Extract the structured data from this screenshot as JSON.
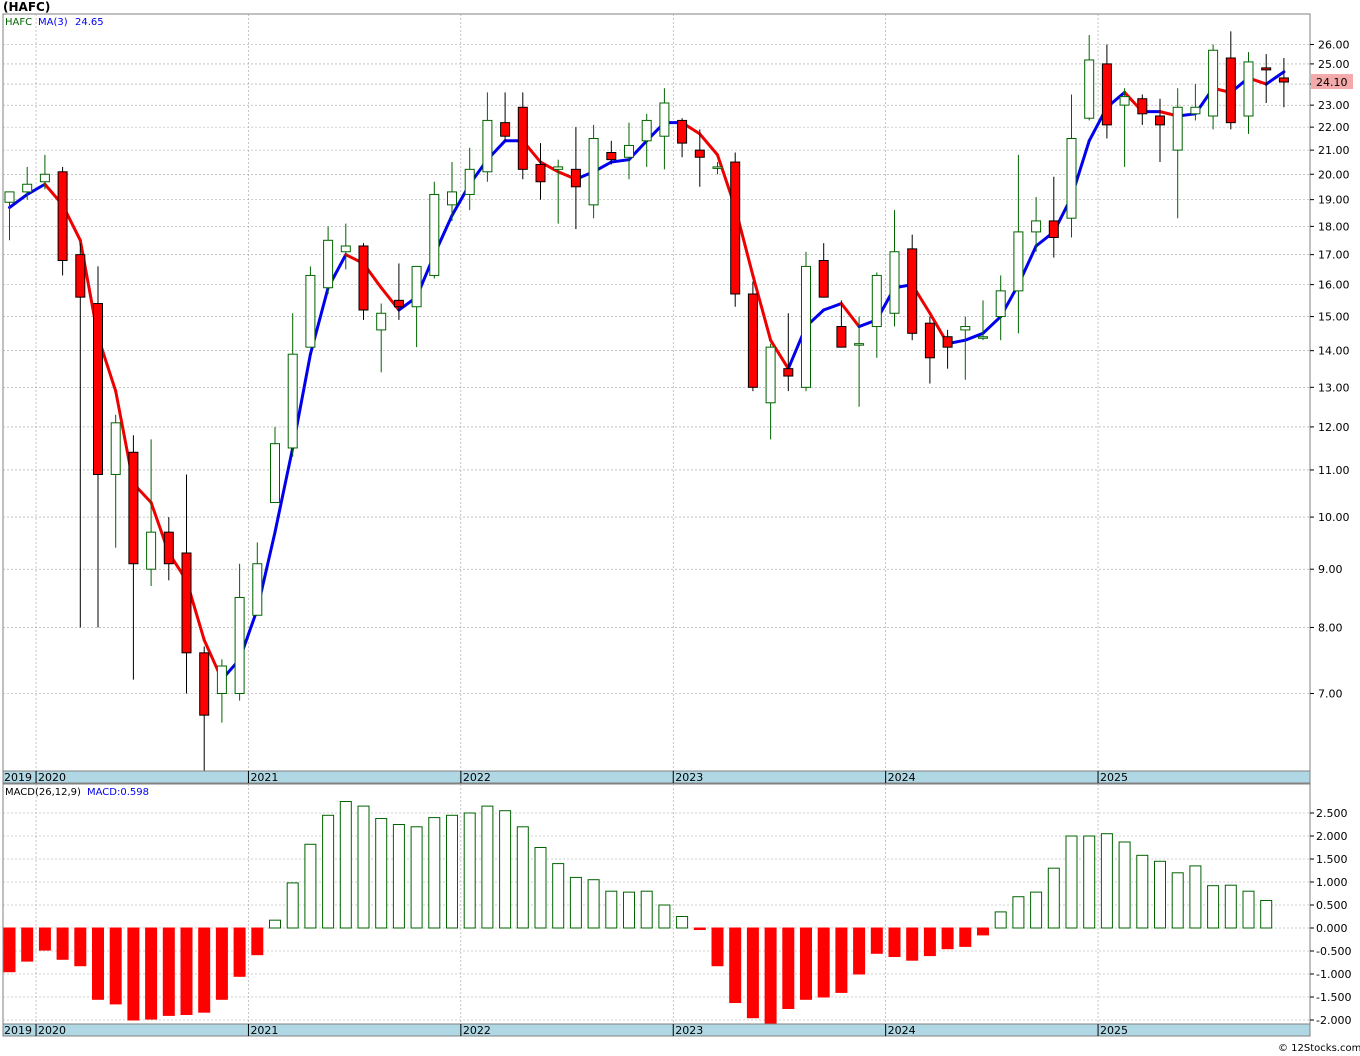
{
  "title": "(HAFC)",
  "copyright": "© 12Stocks.com",
  "last_price_label": "24.10",
  "colors": {
    "up": "#006400",
    "down": "#ff0000",
    "ma_up": "#0000ee",
    "ma_down": "#ee0000",
    "grid": "#a0a0a0",
    "axis_bar": "#b0d8e4"
  },
  "price_legend": {
    "symbol": "HAFC",
    "ma_label": "MA(3)",
    "ma_value": "24.65"
  },
  "macd_legend": {
    "label": "MACD(26,12,9)",
    "value_label": "MACD:0.598"
  },
  "year_labels": [
    "2019",
    "2020",
    "2021",
    "2022",
    "2023",
    "2024",
    "2025"
  ],
  "chart_data": [
    {
      "type": "candlestick",
      "title": "(HAFC)",
      "interval": "monthly",
      "scale": "log",
      "ylim": [
        6.0,
        27.5
      ],
      "yticks": [
        "26.00",
        "25.00",
        "24.00",
        "23.00",
        "22.00",
        "21.00",
        "20.00",
        "19.00",
        "18.00",
        "17.00",
        "16.00",
        "15.00",
        "14.00",
        "13.00",
        "12.00",
        "11.00",
        "10.00",
        "9.00",
        "8.00",
        "7.00"
      ],
      "grid": true,
      "candles": [
        {
          "d": "2019-11",
          "o": 18.9,
          "h": 19.1,
          "l": 17.5,
          "c": 19.3
        },
        {
          "d": "2019-12",
          "o": 19.3,
          "h": 20.3,
          "l": 19.0,
          "c": 19.6
        },
        {
          "d": "2020-01",
          "o": 19.7,
          "h": 20.8,
          "l": 19.4,
          "c": 20.0
        },
        {
          "d": "2020-02",
          "o": 20.1,
          "h": 20.3,
          "l": 16.3,
          "c": 16.8
        },
        {
          "d": "2020-03",
          "o": 17.0,
          "h": 17.4,
          "l": 8.0,
          "c": 15.6
        },
        {
          "d": "2020-04",
          "o": 15.4,
          "h": 16.6,
          "l": 8.0,
          "c": 10.9
        },
        {
          "d": "2020-05",
          "o": 10.9,
          "h": 12.3,
          "l": 9.4,
          "c": 12.1
        },
        {
          "d": "2020-06",
          "o": 11.4,
          "h": 11.8,
          "l": 7.2,
          "c": 9.1
        },
        {
          "d": "2020-07",
          "o": 9.0,
          "h": 11.7,
          "l": 8.7,
          "c": 9.7
        },
        {
          "d": "2020-08",
          "o": 9.7,
          "h": 10.0,
          "l": 8.8,
          "c": 9.1
        },
        {
          "d": "2020-09",
          "o": 9.3,
          "h": 10.9,
          "l": 7.0,
          "c": 7.6
        },
        {
          "d": "2020-10",
          "o": 7.6,
          "h": 7.7,
          "l": 5.9,
          "c": 6.7
        },
        {
          "d": "2020-11",
          "o": 7.0,
          "h": 7.5,
          "l": 6.6,
          "c": 7.4
        },
        {
          "d": "2020-12",
          "o": 7.0,
          "h": 9.1,
          "l": 6.9,
          "c": 8.5
        },
        {
          "d": "2021-01",
          "o": 8.2,
          "h": 9.5,
          "l": 8.2,
          "c": 9.1
        },
        {
          "d": "2021-02",
          "o": 10.3,
          "h": 12.0,
          "l": 10.3,
          "c": 11.6
        },
        {
          "d": "2021-03",
          "o": 11.5,
          "h": 15.1,
          "l": 11.3,
          "c": 13.9
        },
        {
          "d": "2021-04",
          "o": 14.1,
          "h": 16.6,
          "l": 14.1,
          "c": 16.3
        },
        {
          "d": "2021-05",
          "o": 15.9,
          "h": 18.0,
          "l": 15.7,
          "c": 17.5
        },
        {
          "d": "2021-06",
          "o": 17.1,
          "h": 18.1,
          "l": 16.5,
          "c": 17.3
        },
        {
          "d": "2021-07",
          "o": 17.3,
          "h": 17.4,
          "l": 14.9,
          "c": 15.2
        },
        {
          "d": "2021-08",
          "o": 14.6,
          "h": 15.4,
          "l": 13.4,
          "c": 15.1
        },
        {
          "d": "2021-09",
          "o": 15.5,
          "h": 16.7,
          "l": 14.9,
          "c": 15.3
        },
        {
          "d": "2021-10",
          "o": 15.3,
          "h": 16.6,
          "l": 14.1,
          "c": 16.6
        },
        {
          "d": "2021-11",
          "o": 16.3,
          "h": 19.7,
          "l": 16.2,
          "c": 19.2
        },
        {
          "d": "2021-12",
          "o": 18.8,
          "h": 20.5,
          "l": 18.2,
          "c": 19.3
        },
        {
          "d": "2022-01",
          "o": 19.2,
          "h": 21.1,
          "l": 18.6,
          "c": 20.2
        },
        {
          "d": "2022-02",
          "o": 20.1,
          "h": 23.6,
          "l": 19.7,
          "c": 22.3
        },
        {
          "d": "2022-03",
          "o": 22.2,
          "h": 23.6,
          "l": 21.4,
          "c": 21.6
        },
        {
          "d": "2022-04",
          "o": 22.9,
          "h": 23.6,
          "l": 19.8,
          "c": 20.2
        },
        {
          "d": "2022-05",
          "o": 20.4,
          "h": 21.3,
          "l": 19.0,
          "c": 19.7
        },
        {
          "d": "2022-06",
          "o": 20.2,
          "h": 20.6,
          "l": 18.1,
          "c": 20.3
        },
        {
          "d": "2022-07",
          "o": 20.2,
          "h": 22.0,
          "l": 17.9,
          "c": 19.5
        },
        {
          "d": "2022-08",
          "o": 18.8,
          "h": 22.1,
          "l": 18.3,
          "c": 21.5
        },
        {
          "d": "2022-09",
          "o": 20.9,
          "h": 21.4,
          "l": 20.4,
          "c": 20.6
        },
        {
          "d": "2022-10",
          "o": 20.7,
          "h": 22.2,
          "l": 19.8,
          "c": 21.2
        },
        {
          "d": "2022-11",
          "o": 21.4,
          "h": 22.6,
          "l": 20.3,
          "c": 22.3
        },
        {
          "d": "2022-12",
          "o": 21.6,
          "h": 23.8,
          "l": 20.2,
          "c": 23.1
        },
        {
          "d": "2023-01",
          "o": 22.3,
          "h": 22.4,
          "l": 20.7,
          "c": 21.3
        },
        {
          "d": "2023-02",
          "o": 21.0,
          "h": 21.9,
          "l": 19.5,
          "c": 20.7
        },
        {
          "d": "2023-03",
          "o": 20.3,
          "h": 20.5,
          "l": 20.0,
          "c": 20.3
        },
        {
          "d": "2023-04",
          "o": 20.5,
          "h": 20.9,
          "l": 15.3,
          "c": 15.7
        },
        {
          "d": "2023-05",
          "o": 15.7,
          "h": 16.1,
          "l": 12.9,
          "c": 13.0
        },
        {
          "d": "2023-06",
          "o": 12.6,
          "h": 14.2,
          "l": 11.7,
          "c": 14.1
        },
        {
          "d": "2023-07",
          "o": 13.5,
          "h": 15.1,
          "l": 12.9,
          "c": 13.3
        },
        {
          "d": "2023-08",
          "o": 13.0,
          "h": 17.1,
          "l": 12.9,
          "c": 16.6
        },
        {
          "d": "2023-09",
          "o": 16.8,
          "h": 17.4,
          "l": 15.6,
          "c": 15.6
        },
        {
          "d": "2023-10",
          "o": 14.7,
          "h": 15.5,
          "l": 14.1,
          "c": 14.1
        },
        {
          "d": "2023-11",
          "o": 14.2,
          "h": 15.0,
          "l": 12.5,
          "c": 14.2
        },
        {
          "d": "2023-12",
          "o": 14.7,
          "h": 16.4,
          "l": 13.8,
          "c": 16.3
        },
        {
          "d": "2024-01",
          "o": 15.1,
          "h": 18.6,
          "l": 14.7,
          "c": 17.1
        },
        {
          "d": "2024-02",
          "o": 17.2,
          "h": 17.7,
          "l": 14.3,
          "c": 14.5
        },
        {
          "d": "2024-03",
          "o": 14.8,
          "h": 15.0,
          "l": 13.1,
          "c": 13.8
        },
        {
          "d": "2024-04",
          "o": 14.4,
          "h": 14.6,
          "l": 13.5,
          "c": 14.1
        },
        {
          "d": "2024-05",
          "o": 14.6,
          "h": 15.0,
          "l": 13.2,
          "c": 14.7
        },
        {
          "d": "2024-06",
          "o": 14.4,
          "h": 15.5,
          "l": 14.3,
          "c": 14.4
        },
        {
          "d": "2024-07",
          "o": 15.0,
          "h": 16.3,
          "l": 14.3,
          "c": 15.8
        },
        {
          "d": "2024-08",
          "o": 15.8,
          "h": 20.8,
          "l": 14.5,
          "c": 17.8
        },
        {
          "d": "2024-09",
          "o": 17.8,
          "h": 19.1,
          "l": 17.1,
          "c": 18.2
        },
        {
          "d": "2024-10",
          "o": 18.2,
          "h": 19.9,
          "l": 16.9,
          "c": 17.6
        },
        {
          "d": "2024-11",
          "o": 18.3,
          "h": 23.5,
          "l": 17.6,
          "c": 21.5
        },
        {
          "d": "2024-12",
          "o": 22.4,
          "h": 26.5,
          "l": 22.3,
          "c": 25.2
        },
        {
          "d": "2025-01",
          "o": 25.0,
          "h": 26.0,
          "l": 21.5,
          "c": 22.1
        },
        {
          "d": "2025-02",
          "o": 23.0,
          "h": 23.8,
          "l": 20.3,
          "c": 23.4
        },
        {
          "d": "2025-03",
          "o": 23.3,
          "h": 23.5,
          "l": 22.1,
          "c": 22.6
        },
        {
          "d": "2025-04",
          "o": 22.5,
          "h": 23.3,
          "l": 20.5,
          "c": 22.1
        },
        {
          "d": "2025-05",
          "o": 21.0,
          "h": 23.8,
          "l": 18.3,
          "c": 22.9
        },
        {
          "d": "2025-06",
          "o": 22.6,
          "h": 24.0,
          "l": 22.3,
          "c": 22.9
        },
        {
          "d": "2025-07",
          "o": 22.5,
          "h": 26.0,
          "l": 21.9,
          "c": 25.7
        },
        {
          "d": "2025-08",
          "o": 25.3,
          "h": 26.7,
          "l": 21.9,
          "c": 22.2
        },
        {
          "d": "2025-09",
          "o": 22.5,
          "h": 25.6,
          "l": 21.7,
          "c": 25.1
        },
        {
          "d": "2025-10",
          "o": 24.8,
          "h": 25.5,
          "l": 23.1,
          "c": 24.7
        },
        {
          "d": "2025-11",
          "o": 24.3,
          "h": 25.3,
          "l": 22.9,
          "c": 24.1
        }
      ],
      "ma3": [
        18.7,
        19.2,
        19.6,
        18.8,
        17.5,
        14.4,
        12.9,
        10.7,
        10.3,
        9.3,
        8.8,
        7.8,
        7.2,
        7.5,
        8.3,
        9.7,
        11.5,
        13.9,
        15.9,
        17.0,
        16.7,
        15.9,
        15.2,
        15.6,
        17.0,
        18.4,
        19.6,
        20.6,
        21.4,
        21.4,
        20.5,
        20.1,
        19.8,
        20.1,
        20.5,
        20.6,
        21.4,
        22.2,
        22.2,
        21.7,
        20.8,
        18.7,
        16.3,
        14.3,
        13.5,
        14.7,
        15.2,
        15.4,
        14.7,
        14.9,
        15.9,
        16.0,
        15.1,
        14.2,
        14.3,
        14.5,
        15.0,
        16.0,
        17.3,
        17.8,
        19.1,
        21.4,
        22.9,
        23.6,
        22.7,
        22.7,
        22.5,
        22.6,
        23.8,
        23.6,
        24.3,
        24.0,
        24.6
      ],
      "ma_label": "MA(3)",
      "ma_value": 24.65,
      "last_price": 24.1
    },
    {
      "type": "bar",
      "title": "MACD(26,12,9)",
      "ylim": [
        -2.1,
        2.9
      ],
      "yticks": [
        "2.500",
        "2.000",
        "1.500",
        "1.000",
        "0.500",
        "0.000",
        "-0.500",
        "-1.000",
        "-1.500",
        "-2.000"
      ],
      "macd_value": 0.598,
      "values": [
        -0.95,
        -0.72,
        -0.48,
        -0.68,
        -0.82,
        -1.55,
        -1.65,
        -2.0,
        -1.98,
        -1.9,
        -1.88,
        -1.83,
        -1.55,
        -1.05,
        -0.58,
        0.17,
        0.98,
        1.82,
        2.45,
        2.75,
        2.65,
        2.38,
        2.25,
        2.2,
        2.4,
        2.45,
        2.5,
        2.65,
        2.55,
        2.2,
        1.75,
        1.4,
        1.1,
        1.05,
        0.8,
        0.78,
        0.8,
        0.5,
        0.25,
        -0.02,
        -0.82,
        -1.62,
        -1.95,
        -2.1,
        -1.75,
        -1.55,
        -1.5,
        -1.4,
        -1.0,
        -0.55,
        -0.62,
        -0.7,
        -0.6,
        -0.45,
        -0.4,
        -0.15,
        0.35,
        0.68,
        0.78,
        1.3,
        2.0,
        2.0,
        2.05,
        1.87,
        1.58,
        1.45,
        1.2,
        1.35,
        0.92,
        0.93,
        0.8,
        0.598
      ]
    }
  ]
}
